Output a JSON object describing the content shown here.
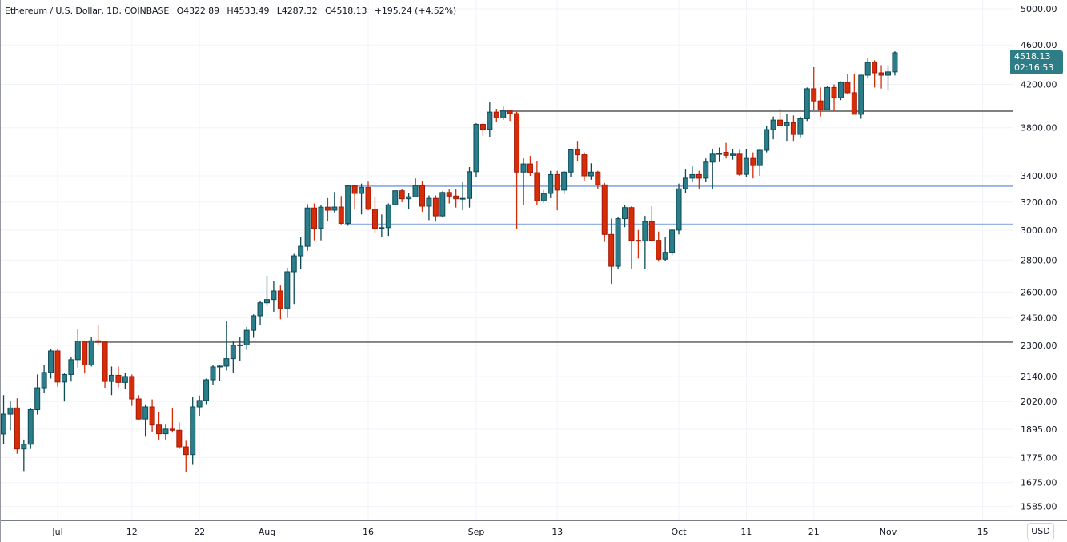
{
  "header": {
    "symbol": "Ethereum / U.S. Dollar, 1D, COINBASE",
    "open": "O4322.89",
    "high": "H4533.49",
    "low": "L4287.32",
    "close": "C4518.13",
    "change": "+195.24 (+4.52%)"
  },
  "currency_label": "USD",
  "last_price": {
    "price": "4518.13",
    "countdown": "02:16:53"
  },
  "colors": {
    "up": "#2b7d8a",
    "up_border": "#0c4a55",
    "down": "#d62d06",
    "down_border": "#a3180b",
    "support_gray": "#808080",
    "support_blue": "#97b3e5",
    "label_bg": "#2e7c85"
  },
  "chart_data": {
    "type": "candlestick",
    "title": "Ethereum / U.S. Dollar, 1D, COINBASE",
    "y_scale": "log",
    "ylim": [
      1540,
      5150
    ],
    "grid": true,
    "y_ticks": [
      5000,
      4600,
      4200,
      3800,
      3400,
      3200,
      3000,
      2800,
      2600,
      2450,
      2300,
      2140,
      2020,
      1895,
      1775,
      1675,
      1585
    ],
    "x_ticks": [
      {
        "label": "Jul",
        "date": "Jul 1"
      },
      {
        "label": "12",
        "date": "Jul 12"
      },
      {
        "label": "22",
        "date": "Jul 22"
      },
      {
        "label": "Aug",
        "date": "Aug 1"
      },
      {
        "label": "16",
        "date": "Aug 16"
      },
      {
        "label": "Sep",
        "date": "Sep 1"
      },
      {
        "label": "13",
        "date": "Sep 13"
      },
      {
        "label": "Oct",
        "date": "Oct 1"
      },
      {
        "label": "11",
        "date": "Oct 11"
      },
      {
        "label": "21",
        "date": "Oct 21"
      },
      {
        "label": "Nov",
        "date": "Nov 1"
      },
      {
        "label": "15",
        "date": "Nov 15"
      }
    ],
    "hlines": [
      {
        "price": 2317,
        "from": "Jul 5",
        "color": "gray"
      },
      {
        "price": 3948,
        "from": "Sep 5",
        "color": "gray"
      },
      {
        "price": 3320,
        "from": "Aug 13",
        "color": "blue"
      },
      {
        "price": 3040,
        "from": "Aug 13",
        "color": "blue"
      }
    ],
    "columns": [
      "date",
      "open",
      "high",
      "low",
      "close"
    ],
    "candles": [
      [
        "Jun 23",
        1874,
        2050,
        1830,
        1962
      ],
      [
        "Jun 24",
        1962,
        2020,
        1890,
        1990
      ],
      [
        "Jun 25",
        1990,
        2035,
        1790,
        1810
      ],
      [
        "Jun 26",
        1810,
        1850,
        1720,
        1830
      ],
      [
        "Jun 27",
        1830,
        1990,
        1810,
        1982
      ],
      [
        "Jun 28",
        1982,
        2150,
        1960,
        2085
      ],
      [
        "Jun 29",
        2085,
        2200,
        2060,
        2160
      ],
      [
        "Jun 30",
        2160,
        2280,
        2130,
        2270
      ],
      [
        "Jul 1",
        2270,
        2280,
        2090,
        2113
      ],
      [
        "Jul 2",
        2113,
        2155,
        2020,
        2150
      ],
      [
        "Jul 3",
        2150,
        2240,
        2115,
        2225
      ],
      [
        "Jul 4",
        2225,
        2390,
        2185,
        2322
      ],
      [
        "Jul 5",
        2322,
        2325,
        2155,
        2198
      ],
      [
        "Jul 6",
        2198,
        2345,
        2190,
        2324
      ],
      [
        "Jul 7",
        2324,
        2410,
        2300,
        2317
      ],
      [
        "Jul 8",
        2317,
        2325,
        2085,
        2116
      ],
      [
        "Jul 9",
        2116,
        2190,
        2050,
        2146
      ],
      [
        "Jul 10",
        2146,
        2190,
        2087,
        2111
      ],
      [
        "Jul 11",
        2111,
        2160,
        2080,
        2140
      ],
      [
        "Jul 12",
        2140,
        2150,
        2000,
        2032
      ],
      [
        "Jul 13",
        2032,
        2050,
        1935,
        1940
      ],
      [
        "Jul 14",
        1940,
        2007,
        1862,
        1995
      ],
      [
        "Jul 15",
        1995,
        2030,
        1882,
        1913
      ],
      [
        "Jul 16",
        1913,
        1970,
        1850,
        1875
      ],
      [
        "Jul 17",
        1875,
        1915,
        1850,
        1895
      ],
      [
        "Jul 18",
        1895,
        1990,
        1880,
        1890
      ],
      [
        "Jul 19",
        1890,
        1925,
        1810,
        1819
      ],
      [
        "Jul 20",
        1819,
        1845,
        1718,
        1787
      ],
      [
        "Jul 21",
        1787,
        2040,
        1745,
        1995
      ],
      [
        "Jul 22",
        1995,
        2048,
        1955,
        2025
      ],
      [
        "Jul 23",
        2025,
        2130,
        2008,
        2124
      ],
      [
        "Jul 24",
        2124,
        2200,
        2100,
        2188
      ],
      [
        "Jul 25",
        2188,
        2200,
        2120,
        2192
      ],
      [
        "Jul 26",
        2192,
        2430,
        2170,
        2230
      ],
      [
        "Jul 27",
        2230,
        2320,
        2160,
        2300
      ],
      [
        "Jul 28",
        2300,
        2345,
        2220,
        2302
      ],
      [
        "Jul 29",
        2302,
        2400,
        2275,
        2381
      ],
      [
        "Jul 30",
        2381,
        2470,
        2340,
        2462
      ],
      [
        "Jul 31",
        2462,
        2550,
        2410,
        2537
      ],
      [
        "Aug 1",
        2537,
        2700,
        2518,
        2556
      ],
      [
        "Aug 2",
        2556,
        2670,
        2485,
        2607
      ],
      [
        "Aug 3",
        2607,
        2640,
        2443,
        2506
      ],
      [
        "Aug 4",
        2506,
        2750,
        2450,
        2725
      ],
      [
        "Aug 5",
        2725,
        2840,
        2530,
        2827
      ],
      [
        "Aug 6",
        2827,
        2950,
        2740,
        2890
      ],
      [
        "Aug 7",
        2890,
        3185,
        2860,
        3157
      ],
      [
        "Aug 8",
        3157,
        3190,
        2930,
        3012
      ],
      [
        "Aug 9",
        3012,
        3180,
        2930,
        3163
      ],
      [
        "Aug 10",
        3163,
        3230,
        3060,
        3141
      ],
      [
        "Aug 11",
        3141,
        3275,
        3125,
        3164
      ],
      [
        "Aug 12",
        3164,
        3245,
        3040,
        3047
      ],
      [
        "Aug 13",
        3047,
        3330,
        3030,
        3322
      ],
      [
        "Aug 14",
        3322,
        3330,
        3150,
        3265
      ],
      [
        "Aug 15",
        3265,
        3340,
        3110,
        3310
      ],
      [
        "Aug 16",
        3310,
        3355,
        3140,
        3148
      ],
      [
        "Aug 17",
        3148,
        3240,
        2980,
        3012
      ],
      [
        "Aug 18",
        3012,
        3110,
        2950,
        3017
      ],
      [
        "Aug 19",
        3017,
        3190,
        2960,
        3180
      ],
      [
        "Aug 20",
        3180,
        3290,
        3175,
        3285
      ],
      [
        "Aug 21",
        3285,
        3300,
        3200,
        3225
      ],
      [
        "Aug 22",
        3225,
        3270,
        3150,
        3240
      ],
      [
        "Aug 23",
        3240,
        3380,
        3235,
        3325
      ],
      [
        "Aug 24",
        3325,
        3360,
        3130,
        3170
      ],
      [
        "Aug 25",
        3170,
        3250,
        3070,
        3228
      ],
      [
        "Aug 26",
        3228,
        3250,
        3060,
        3100
      ],
      [
        "Aug 27",
        3100,
        3280,
        3090,
        3272
      ],
      [
        "Aug 28",
        3272,
        3295,
        3190,
        3245
      ],
      [
        "Aug 29",
        3245,
        3295,
        3160,
        3225
      ],
      [
        "Aug 30",
        3225,
        3350,
        3140,
        3228
      ],
      [
        "Aug 31",
        3228,
        3470,
        3160,
        3433
      ],
      [
        "Sep 1",
        3433,
        3840,
        3390,
        3830
      ],
      [
        "Sep 2",
        3830,
        3840,
        3730,
        3786
      ],
      [
        "Sep 3",
        3786,
        4030,
        3720,
        3940
      ],
      [
        "Sep 4",
        3940,
        3970,
        3850,
        3888
      ],
      [
        "Sep 5",
        3888,
        3990,
        3870,
        3950
      ],
      [
        "Sep 6",
        3950,
        3960,
        3860,
        3926
      ],
      [
        "Sep 7",
        3926,
        3945,
        3010,
        3430
      ],
      [
        "Sep 8",
        3430,
        3540,
        3180,
        3495
      ],
      [
        "Sep 9",
        3495,
        3560,
        3400,
        3425
      ],
      [
        "Sep 10",
        3425,
        3520,
        3180,
        3210
      ],
      [
        "Sep 11",
        3210,
        3290,
        3195,
        3265
      ],
      [
        "Sep 12",
        3265,
        3440,
        3230,
        3410
      ],
      [
        "Sep 13",
        3410,
        3440,
        3140,
        3290
      ],
      [
        "Sep 14",
        3290,
        3440,
        3260,
        3430
      ],
      [
        "Sep 15",
        3430,
        3620,
        3390,
        3610
      ],
      [
        "Sep 16",
        3610,
        3680,
        3520,
        3570
      ],
      [
        "Sep 17",
        3570,
        3590,
        3360,
        3400
      ],
      [
        "Sep 18",
        3400,
        3500,
        3370,
        3430
      ],
      [
        "Sep 19",
        3430,
        3440,
        3300,
        3330
      ],
      [
        "Sep 20",
        3330,
        3345,
        2920,
        2970
      ],
      [
        "Sep 21",
        2970,
        3080,
        2650,
        2760
      ],
      [
        "Sep 22",
        2760,
        3090,
        2740,
        3080
      ],
      [
        "Sep 23",
        3080,
        3180,
        3020,
        3160
      ],
      [
        "Sep 24",
        3160,
        3170,
        2740,
        2930
      ],
      [
        "Sep 25",
        2930,
        3000,
        2810,
        2925
      ],
      [
        "Sep 26",
        2925,
        3100,
        2740,
        3060
      ],
      [
        "Sep 27",
        3060,
        3170,
        2920,
        2930
      ],
      [
        "Sep 28",
        2930,
        2990,
        2790,
        2805
      ],
      [
        "Sep 29",
        2805,
        2950,
        2795,
        2850
      ],
      [
        "Sep 30",
        2850,
        3010,
        2830,
        3000
      ],
      [
        "Oct 1",
        3000,
        3340,
        2970,
        3300
      ],
      [
        "Oct 2",
        3300,
        3450,
        3270,
        3382
      ],
      [
        "Oct 3",
        3382,
        3475,
        3350,
        3410
      ],
      [
        "Oct 4",
        3410,
        3440,
        3300,
        3382
      ],
      [
        "Oct 5",
        3382,
        3540,
        3350,
        3510
      ],
      [
        "Oct 6",
        3510,
        3620,
        3300,
        3575
      ],
      [
        "Oct 7",
        3575,
        3630,
        3510,
        3580
      ],
      [
        "Oct 8",
        3590,
        3670,
        3540,
        3565
      ],
      [
        "Oct 9",
        3565,
        3620,
        3530,
        3575
      ],
      [
        "Oct 10",
        3575,
        3610,
        3400,
        3412
      ],
      [
        "Oct 11",
        3412,
        3620,
        3390,
        3540
      ],
      [
        "Oct 12",
        3540,
        3590,
        3380,
        3482
      ],
      [
        "Oct 13",
        3482,
        3620,
        3400,
        3607
      ],
      [
        "Oct 14",
        3607,
        3815,
        3590,
        3784
      ],
      [
        "Oct 15",
        3784,
        3900,
        3700,
        3868
      ],
      [
        "Oct 16",
        3868,
        3970,
        3840,
        3819
      ],
      [
        "Oct 17",
        3819,
        3920,
        3680,
        3845
      ],
      [
        "Oct 18",
        3845,
        3910,
        3680,
        3742
      ],
      [
        "Oct 19",
        3742,
        3900,
        3710,
        3880
      ],
      [
        "Oct 20",
        3880,
        4170,
        3860,
        4158
      ],
      [
        "Oct 21",
        4158,
        4370,
        3960,
        4043
      ],
      [
        "Oct 22",
        4043,
        4170,
        3900,
        3962
      ],
      [
        "Oct 23",
        3962,
        4180,
        3960,
        4170
      ],
      [
        "Oct 24",
        4170,
        4200,
        3950,
        4074
      ],
      [
        "Oct 25",
        4074,
        4230,
        4050,
        4219
      ],
      [
        "Oct 26",
        4219,
        4300,
        4110,
        4120
      ],
      [
        "Oct 27",
        4120,
        4300,
        3920,
        3920
      ],
      [
        "Oct 28",
        3920,
        4295,
        3880,
        4290
      ],
      [
        "Oct 29",
        4290,
        4460,
        4260,
        4419
      ],
      [
        "Oct 30",
        4419,
        4440,
        4170,
        4314
      ],
      [
        "Oct 31",
        4314,
        4390,
        4160,
        4290
      ],
      [
        "Nov 1",
        4290,
        4390,
        4140,
        4323
      ],
      [
        "Nov 2",
        4322.89,
        4533.49,
        4287.32,
        4518.13
      ]
    ]
  }
}
